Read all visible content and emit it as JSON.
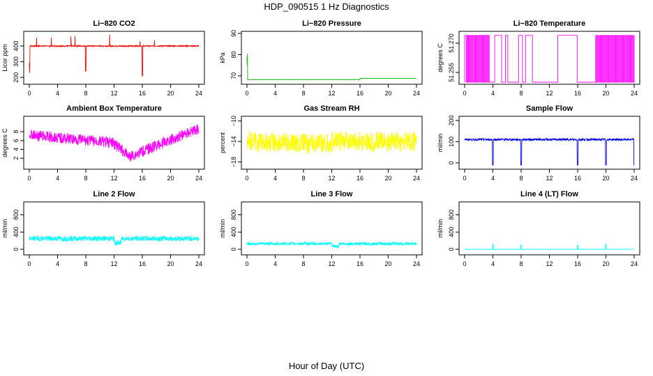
{
  "figure": {
    "title": "HDP_090515  1 Hz Diagnostics",
    "xlabel": "Hour of Day (UTC)"
  },
  "chart_data": [
    {
      "type": "line",
      "title": "Li−820 CO2",
      "xlabel": "",
      "ylabel": "Licor ppm",
      "color": "#ff0000",
      "xlim": [
        0,
        24
      ],
      "ylim": [
        170,
        480
      ],
      "xticks": [
        "0",
        "4",
        "8",
        "12",
        "16",
        "20",
        "24"
      ],
      "yticks": [
        "200",
        "300",
        "400"
      ],
      "series": [
        {
          "name": "CO2",
          "pattern": "co2",
          "baseline": 400,
          "noise": 8
        }
      ]
    },
    {
      "type": "line",
      "title": "Li−820 Pressure",
      "xlabel": "",
      "ylabel": "kPa",
      "color": "#00bb00",
      "xlim": [
        0,
        24
      ],
      "ylim": [
        67,
        90
      ],
      "xticks": [
        "0",
        "4",
        "8",
        "12",
        "16",
        "20",
        "24"
      ],
      "yticks": [
        "70",
        "80",
        "90"
      ],
      "series": [
        {
          "name": "Pressure",
          "pattern": "pressure",
          "baseline": 68.2,
          "noise": 0.1
        }
      ]
    },
    {
      "type": "line",
      "title": "Li−820 Temperature",
      "xlabel": "",
      "ylabel": "degrees C",
      "color": "#ff00ff",
      "xlim": [
        0,
        24
      ],
      "ylim": [
        51.25,
        51.275
      ],
      "xticks": [
        "0",
        "4",
        "8",
        "12",
        "16",
        "20",
        "24"
      ],
      "yticks": [
        "51.255",
        "51.270"
      ],
      "series": [
        {
          "name": "Temperature",
          "pattern": "licortemp",
          "baseline": 51.25,
          "noise": 0
        }
      ]
    },
    {
      "type": "line",
      "title": "Ambient Box Temperature",
      "xlabel": "",
      "ylabel": "degrees C",
      "color": "#ff00ff",
      "xlim": [
        0,
        24
      ],
      "ylim": [
        0,
        11
      ],
      "xticks": [
        "0",
        "4",
        "8",
        "12",
        "16",
        "20",
        "24"
      ],
      "yticks": [
        "2",
        "4",
        "6",
        "8"
      ],
      "series": [
        {
          "name": "Box temperature",
          "pattern": "boxtemp",
          "baseline": 7,
          "noise": 2.5
        }
      ]
    },
    {
      "type": "line",
      "title": "Gas Stream RH",
      "xlabel": "",
      "ylabel": "percent",
      "color": "#ffff00",
      "xlim": [
        0,
        24
      ],
      "ylim": [
        -19,
        -9.5
      ],
      "xticks": [
        "0",
        "4",
        "8",
        "12",
        "16",
        "20",
        "24"
      ],
      "yticks": [
        "−18",
        "−14",
        "−10"
      ],
      "series": [
        {
          "name": "RH",
          "pattern": "rh",
          "baseline": -14,
          "noise": 3
        }
      ]
    },
    {
      "type": "line",
      "title": "Sample Flow",
      "xlabel": "",
      "ylabel": "ml/min",
      "color": "#0000ee",
      "xlim": [
        0,
        24
      ],
      "ylim": [
        -20,
        210
      ],
      "xticks": [
        "0",
        "4",
        "8",
        "12",
        "16",
        "20",
        "24"
      ],
      "yticks": [
        "0",
        "100",
        "200"
      ],
      "series": [
        {
          "name": "Sample flow",
          "pattern": "sampleflow",
          "baseline": 110,
          "noise": 5
        }
      ]
    },
    {
      "type": "line",
      "title": "Line 2 Flow",
      "xlabel": "",
      "ylabel": "ml/min",
      "color": "#00ffff",
      "xlim": [
        0,
        24
      ],
      "ylim": [
        -80,
        1050
      ],
      "xticks": [
        "0",
        "4",
        "8",
        "12",
        "16",
        "20",
        "24"
      ],
      "yticks": [
        "0",
        "400",
        "800"
      ],
      "series": [
        {
          "name": "Line 2",
          "pattern": "line2",
          "baseline": 250,
          "noise": 60
        }
      ]
    },
    {
      "type": "line",
      "title": "Line 3 Flow",
      "xlabel": "",
      "ylabel": "ml/min",
      "color": "#00ffff",
      "xlim": [
        0,
        24
      ],
      "ylim": [
        -80,
        1050
      ],
      "xticks": [
        "0",
        "4",
        "8",
        "12",
        "16",
        "20",
        "24"
      ],
      "yticks": [
        "0",
        "400",
        "800"
      ],
      "series": [
        {
          "name": "Line 3",
          "pattern": "line3",
          "baseline": 130,
          "noise": 35
        }
      ]
    },
    {
      "type": "line",
      "title": "Line 4 (LT) Flow",
      "xlabel": "",
      "ylabel": "ml/min",
      "color": "#00ffff",
      "xlim": [
        0,
        24
      ],
      "ylim": [
        -80,
        1050
      ],
      "xticks": [
        "0",
        "4",
        "8",
        "12",
        "16",
        "20",
        "24"
      ],
      "yticks": [
        "0",
        "400",
        "800"
      ],
      "series": [
        {
          "name": "Line 4",
          "pattern": "line4",
          "baseline": 0,
          "noise": 5
        }
      ]
    }
  ]
}
